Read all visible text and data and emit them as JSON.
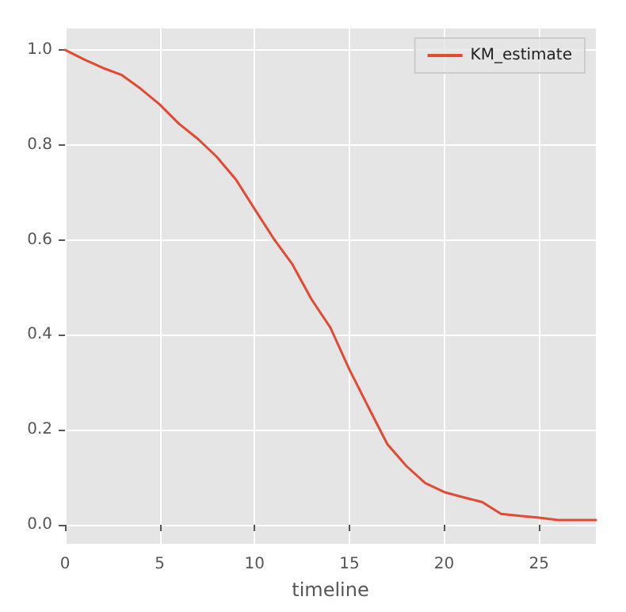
{
  "chart_data": {
    "type": "line",
    "xlabel": "timeline",
    "x": [
      0,
      1,
      2,
      3,
      4,
      5,
      6,
      7,
      8,
      9,
      10,
      11,
      12,
      13,
      14,
      15,
      16,
      17,
      18,
      19,
      20,
      21,
      22,
      23,
      24,
      25,
      26,
      27,
      28
    ],
    "series": [
      {
        "name": "KM_estimate",
        "color": "#e24a33",
        "values": [
          1.0,
          0.98,
          0.962,
          0.947,
          0.918,
          0.885,
          0.845,
          0.813,
          0.775,
          0.728,
          0.665,
          0.603,
          0.548,
          0.475,
          0.415,
          0.327,
          0.248,
          0.17,
          0.124,
          0.088,
          0.069,
          0.058,
          0.048,
          0.023,
          0.019,
          0.015,
          0.01,
          0.01,
          0.01
        ]
      }
    ],
    "xlim": [
      0,
      28
    ],
    "xticks": [
      0,
      5,
      10,
      15,
      20,
      25
    ],
    "ylim": [
      -0.04,
      1.045
    ],
    "yticks": [
      {
        "value": 0,
        "label": "0.0"
      },
      {
        "value": 0.2,
        "label": "0.2"
      },
      {
        "value": 0.4,
        "label": "0.4"
      },
      {
        "value": 0.6,
        "label": "0.6"
      },
      {
        "value": 0.8,
        "label": "0.8"
      },
      {
        "value": 1,
        "label": "1.0"
      }
    ],
    "grid": true,
    "legend": "top right",
    "marker": "none",
    "line_style": "solid"
  }
}
